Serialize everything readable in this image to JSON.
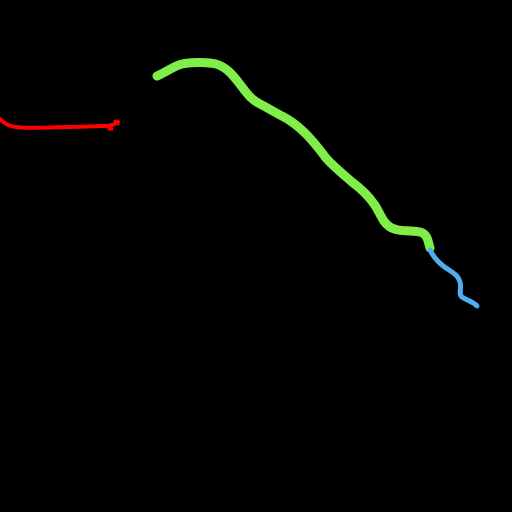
{
  "background_color": "#000000",
  "segments": [
    {
      "name": "red-segment",
      "color": "#ff0000"
    },
    {
      "name": "green-segment",
      "color": "#80ee48"
    },
    {
      "name": "blue-segment",
      "color": "#4ab0f0"
    }
  ]
}
